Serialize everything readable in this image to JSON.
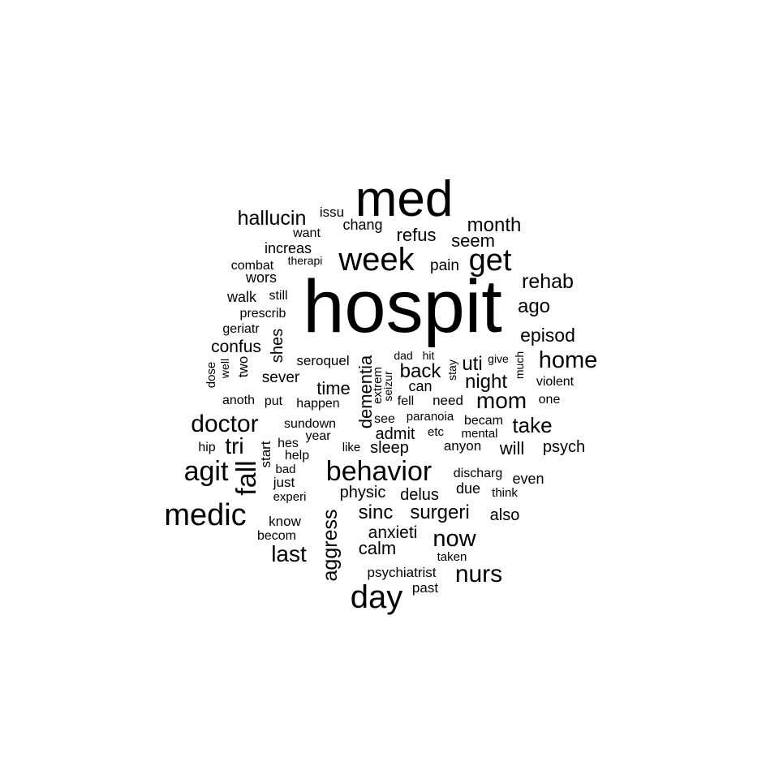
{
  "word_cloud": {
    "text_color": "#000000",
    "background": "#ffffff",
    "words": [
      {
        "text": "hospit",
        "rotated": false
      },
      {
        "text": "med",
        "rotated": false
      },
      {
        "text": "week",
        "rotated": false
      },
      {
        "text": "get",
        "rotated": false
      },
      {
        "text": "day",
        "rotated": false
      },
      {
        "text": "medic",
        "rotated": false
      },
      {
        "text": "behavior",
        "rotated": false
      },
      {
        "text": "agit",
        "rotated": false
      },
      {
        "text": "fall",
        "rotated": true
      },
      {
        "text": "doctor",
        "rotated": false
      },
      {
        "text": "home",
        "rotated": false
      },
      {
        "text": "now",
        "rotated": false
      },
      {
        "text": "nurs",
        "rotated": false
      },
      {
        "text": "last",
        "rotated": false
      },
      {
        "text": "mom",
        "rotated": false
      },
      {
        "text": "take",
        "rotated": false
      },
      {
        "text": "tri",
        "rotated": false
      },
      {
        "text": "hallucin",
        "rotated": false
      },
      {
        "text": "rehab",
        "rotated": false
      },
      {
        "text": "month",
        "rotated": false
      },
      {
        "text": "aggress",
        "rotated": true
      },
      {
        "text": "sinc",
        "rotated": false
      },
      {
        "text": "surgeri",
        "rotated": false
      },
      {
        "text": "back",
        "rotated": false
      },
      {
        "text": "night",
        "rotated": false
      },
      {
        "text": "uti",
        "rotated": false
      },
      {
        "text": "ago",
        "rotated": false
      },
      {
        "text": "episod",
        "rotated": false
      },
      {
        "text": "dementia",
        "rotated": true
      },
      {
        "text": "time",
        "rotated": false
      },
      {
        "text": "calm",
        "rotated": false
      },
      {
        "text": "anxieti",
        "rotated": false
      },
      {
        "text": "refus",
        "rotated": false
      },
      {
        "text": "seem",
        "rotated": false
      },
      {
        "text": "confus",
        "rotated": false
      },
      {
        "text": "physic",
        "rotated": false
      },
      {
        "text": "delus",
        "rotated": false
      },
      {
        "text": "admit",
        "rotated": false
      },
      {
        "text": "sleep",
        "rotated": false
      },
      {
        "text": "will",
        "rotated": false
      },
      {
        "text": "psych",
        "rotated": false
      },
      {
        "text": "also",
        "rotated": false
      },
      {
        "text": "shes",
        "rotated": true
      },
      {
        "text": "sever",
        "rotated": false
      },
      {
        "text": "chang",
        "rotated": false
      },
      {
        "text": "pain",
        "rotated": false
      },
      {
        "text": "increas",
        "rotated": false
      },
      {
        "text": "wors",
        "rotated": false
      },
      {
        "text": "walk",
        "rotated": false
      },
      {
        "text": "seroquel",
        "rotated": false
      },
      {
        "text": "issu",
        "rotated": false
      },
      {
        "text": "start",
        "rotated": true
      },
      {
        "text": "two",
        "rotated": true
      },
      {
        "text": "can",
        "rotated": false
      },
      {
        "text": "due",
        "rotated": false
      },
      {
        "text": "even",
        "rotated": false
      },
      {
        "text": "anyon",
        "rotated": false
      },
      {
        "text": "psychiatrist",
        "rotated": false
      },
      {
        "text": "geriatr",
        "rotated": false
      },
      {
        "text": "prescrib",
        "rotated": false
      },
      {
        "text": "combat",
        "rotated": false
      },
      {
        "text": "still",
        "rotated": false
      },
      {
        "text": "want",
        "rotated": false
      },
      {
        "text": "violent",
        "rotated": false
      },
      {
        "text": "one",
        "rotated": false
      },
      {
        "text": "need",
        "rotated": false
      },
      {
        "text": "fell",
        "rotated": false
      },
      {
        "text": "happen",
        "rotated": false
      },
      {
        "text": "put",
        "rotated": false
      },
      {
        "text": "anoth",
        "rotated": false
      },
      {
        "text": "sundown",
        "rotated": false
      },
      {
        "text": "year",
        "rotated": false
      },
      {
        "text": "hes",
        "rotated": false
      },
      {
        "text": "help",
        "rotated": false
      },
      {
        "text": "hip",
        "rotated": false
      },
      {
        "text": "like",
        "rotated": false
      },
      {
        "text": "see",
        "rotated": false
      },
      {
        "text": "paranoia",
        "rotated": false
      },
      {
        "text": "becam",
        "rotated": false
      },
      {
        "text": "etc",
        "rotated": false
      },
      {
        "text": "mental",
        "rotated": false
      },
      {
        "text": "discharg",
        "rotated": false
      },
      {
        "text": "think",
        "rotated": false
      },
      {
        "text": "bad",
        "rotated": false
      },
      {
        "text": "just",
        "rotated": false
      },
      {
        "text": "experi",
        "rotated": false
      },
      {
        "text": "know",
        "rotated": false
      },
      {
        "text": "becom",
        "rotated": false
      },
      {
        "text": "taken",
        "rotated": false
      },
      {
        "text": "past",
        "rotated": false
      },
      {
        "text": "therapi",
        "rotated": false
      },
      {
        "text": "dose",
        "rotated": true
      },
      {
        "text": "well",
        "rotated": true
      },
      {
        "text": "dad",
        "rotated": false
      },
      {
        "text": "hit",
        "rotated": false
      },
      {
        "text": "stay",
        "rotated": true
      },
      {
        "text": "give",
        "rotated": false
      },
      {
        "text": "much",
        "rotated": true
      },
      {
        "text": "extrem",
        "rotated": true
      },
      {
        "text": "seizur",
        "rotated": true
      }
    ]
  }
}
